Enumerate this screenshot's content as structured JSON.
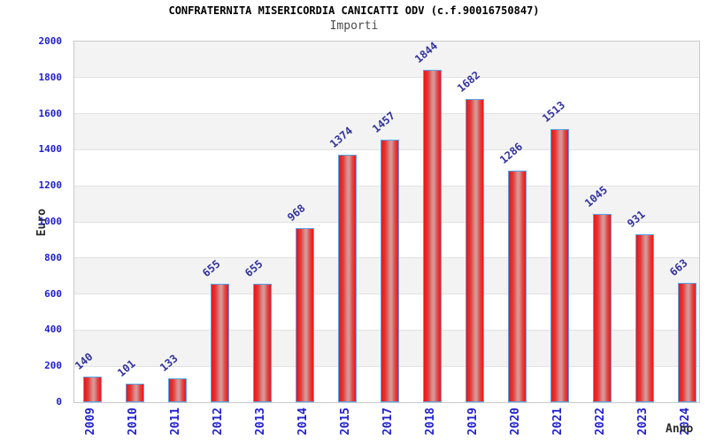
{
  "chart_data": {
    "type": "bar",
    "title": "CONFRATERNITA MISERICORDIA CANICATTI ODV (c.f.90016750847)",
    "subtitle": "Importi",
    "categories": [
      "2009",
      "2010",
      "2011",
      "2012",
      "2013",
      "2014",
      "2015",
      "2017",
      "2018",
      "2019",
      "2020",
      "2021",
      "2022",
      "2023",
      "2024"
    ],
    "values": [
      140,
      101,
      133,
      655,
      655,
      968,
      1374,
      1457,
      1844,
      1682,
      1286,
      1513,
      1045,
      931,
      663
    ],
    "xlabel": "Anno",
    "ylabel": "Euro",
    "ylim": [
      0,
      2000
    ],
    "yticks": [
      0,
      200,
      400,
      600,
      800,
      1000,
      1200,
      1400,
      1600,
      1800,
      2000
    ],
    "grid": true,
    "legend": false,
    "bands_alternating": true,
    "colors": {
      "bar_fill_edge": "#f21212",
      "bar_fill_mid": "#d49a9a",
      "bar_border": "#58a5ea",
      "value_label": "#32329e",
      "tick_label": "#2020cf",
      "axis_title": "#2b2b2b",
      "band": "#f3f3f3",
      "gridline": "#e1e1e1",
      "plot_border": "#c8c8c8"
    }
  }
}
